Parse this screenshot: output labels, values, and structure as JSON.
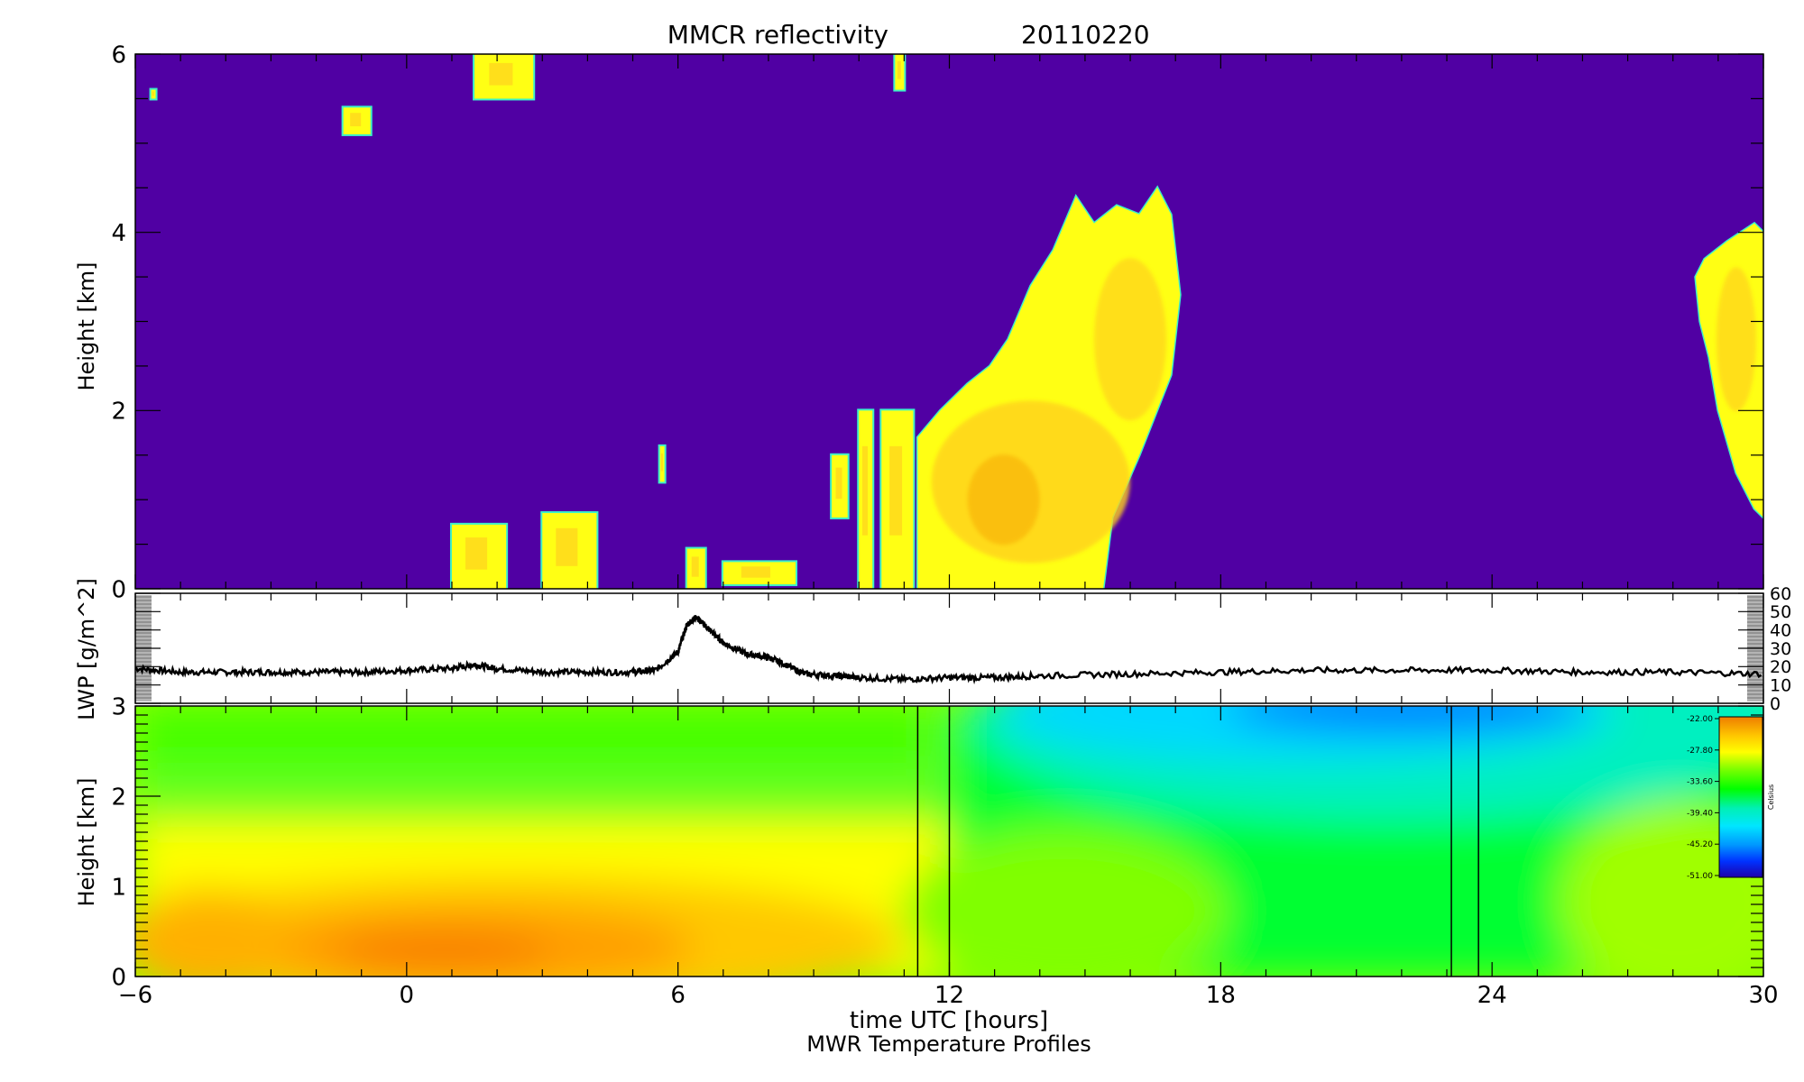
{
  "chart_data": [
    {
      "type": "heatmap",
      "title": "MMCR reflectivity",
      "date": "20110220",
      "ylabel": "Height [km]",
      "xlim": [
        -6,
        30
      ],
      "ylim": [
        0,
        6
      ],
      "yticks": [
        0,
        2,
        4,
        6
      ],
      "background_color": "#5000a3",
      "echo_colors": [
        "#ffff14",
        "#ffd21e",
        "#f5a000",
        "#3cf0c8"
      ],
      "echoes": [
        {
          "t0": 1.0,
          "t1": 2.2,
          "h0": 0.0,
          "h1": 0.72
        },
        {
          "t0": 3.0,
          "t1": 4.2,
          "h0": 0.0,
          "h1": 0.85
        },
        {
          "t0": 6.2,
          "t1": 6.6,
          "h0": 0.0,
          "h1": 0.45
        },
        {
          "t0": 7.0,
          "t1": 8.6,
          "h0": 0.05,
          "h1": 0.3
        },
        {
          "t0": 5.6,
          "t1": 5.7,
          "h0": 1.2,
          "h1": 1.6
        },
        {
          "t0": 9.4,
          "t1": 9.75,
          "h0": 0.8,
          "h1": 1.5
        },
        {
          "t0": 10.0,
          "t1": 10.3,
          "h0": 0.0,
          "h1": 2.0
        },
        {
          "t0": 10.5,
          "t1": 11.2,
          "h0": 0.0,
          "h1": 2.0
        },
        {
          "t0": -5.65,
          "t1": -5.55,
          "h0": 5.5,
          "h1": 5.6
        },
        {
          "t0": -1.4,
          "t1": -0.8,
          "h0": 5.1,
          "h1": 5.4
        },
        {
          "t0": 1.5,
          "t1": 2.8,
          "h0": 5.5,
          "h1": 6.0
        },
        {
          "t0": 10.8,
          "t1": 11.0,
          "h0": 5.6,
          "h1": 6.0
        }
      ],
      "main_cloud": [
        [
          11.3,
          0
        ],
        [
          15.4,
          0
        ],
        [
          15.6,
          0.8
        ],
        [
          16.2,
          1.5
        ],
        [
          16.9,
          2.4
        ],
        [
          17.1,
          3.3
        ],
        [
          16.9,
          4.2
        ],
        [
          16.6,
          4.5
        ],
        [
          16.2,
          4.2
        ],
        [
          15.7,
          4.3
        ],
        [
          15.2,
          4.1
        ],
        [
          14.8,
          4.4
        ],
        [
          14.3,
          3.8
        ],
        [
          13.8,
          3.4
        ],
        [
          13.3,
          2.8
        ],
        [
          12.9,
          2.5
        ],
        [
          12.4,
          2.3
        ],
        [
          11.8,
          2.0
        ],
        [
          11.3,
          1.7
        ]
      ],
      "right_cloud": [
        [
          28.7,
          3.7
        ],
        [
          29.2,
          3.9
        ],
        [
          29.8,
          4.1
        ],
        [
          30,
          4.0
        ],
        [
          30,
          0.8
        ],
        [
          29.8,
          0.9
        ],
        [
          29.4,
          1.3
        ],
        [
          29.0,
          2.0
        ],
        [
          28.8,
          2.6
        ],
        [
          28.6,
          3.0
        ],
        [
          28.5,
          3.5
        ]
      ]
    },
    {
      "type": "line",
      "ylabel": "LWP [g/m^2]",
      "xlim": [
        -6,
        30
      ],
      "ylim": [
        0,
        60
      ],
      "yticks": [
        0,
        10,
        20,
        30,
        40,
        50,
        60
      ],
      "x": [
        -6,
        -5,
        -4,
        -3,
        -2,
        -1,
        0,
        1,
        1.5,
        2,
        3,
        4,
        5,
        5.5,
        6,
        6.2,
        6.4,
        6.7,
        7,
        7.5,
        8,
        8.3,
        8.8,
        9.5,
        10,
        11,
        12,
        13,
        14,
        16,
        18,
        20,
        22,
        24,
        26,
        28,
        30
      ],
      "values": [
        19,
        17,
        17,
        17,
        17,
        17,
        18,
        19,
        21,
        19,
        17,
        17,
        17,
        18,
        28,
        43,
        47,
        40,
        33,
        27,
        25,
        22,
        16,
        15,
        14,
        13,
        14,
        14,
        15,
        16,
        17,
        18,
        18,
        18,
        17,
        17,
        16
      ]
    },
    {
      "type": "heatmap",
      "ylabel": "Height [km]",
      "xlabel": "time UTC [hours]",
      "subtitle": "MWR Temperature Profiles",
      "xlim": [
        -6,
        30
      ],
      "ylim": [
        0,
        3
      ],
      "xticks": [
        -6,
        0,
        6,
        12,
        18,
        24,
        30
      ],
      "yticks": [
        0,
        1,
        2,
        3
      ],
      "gap_lines": [
        11.3,
        12.0,
        23.1,
        23.7
      ],
      "colorbar": {
        "label": "Celsius",
        "ticks": [
          "-22.00",
          "-27.80",
          "-33.60",
          "-39.40",
          "-45.20",
          "-51.00"
        ],
        "colors": [
          "#ee7d00",
          "#ffc800",
          "#ffff00",
          "#78ff00",
          "#00ff00",
          "#00f0b4",
          "#00e6ff",
          "#0096ff",
          "#0032ff",
          "#1e00aa"
        ]
      }
    }
  ]
}
